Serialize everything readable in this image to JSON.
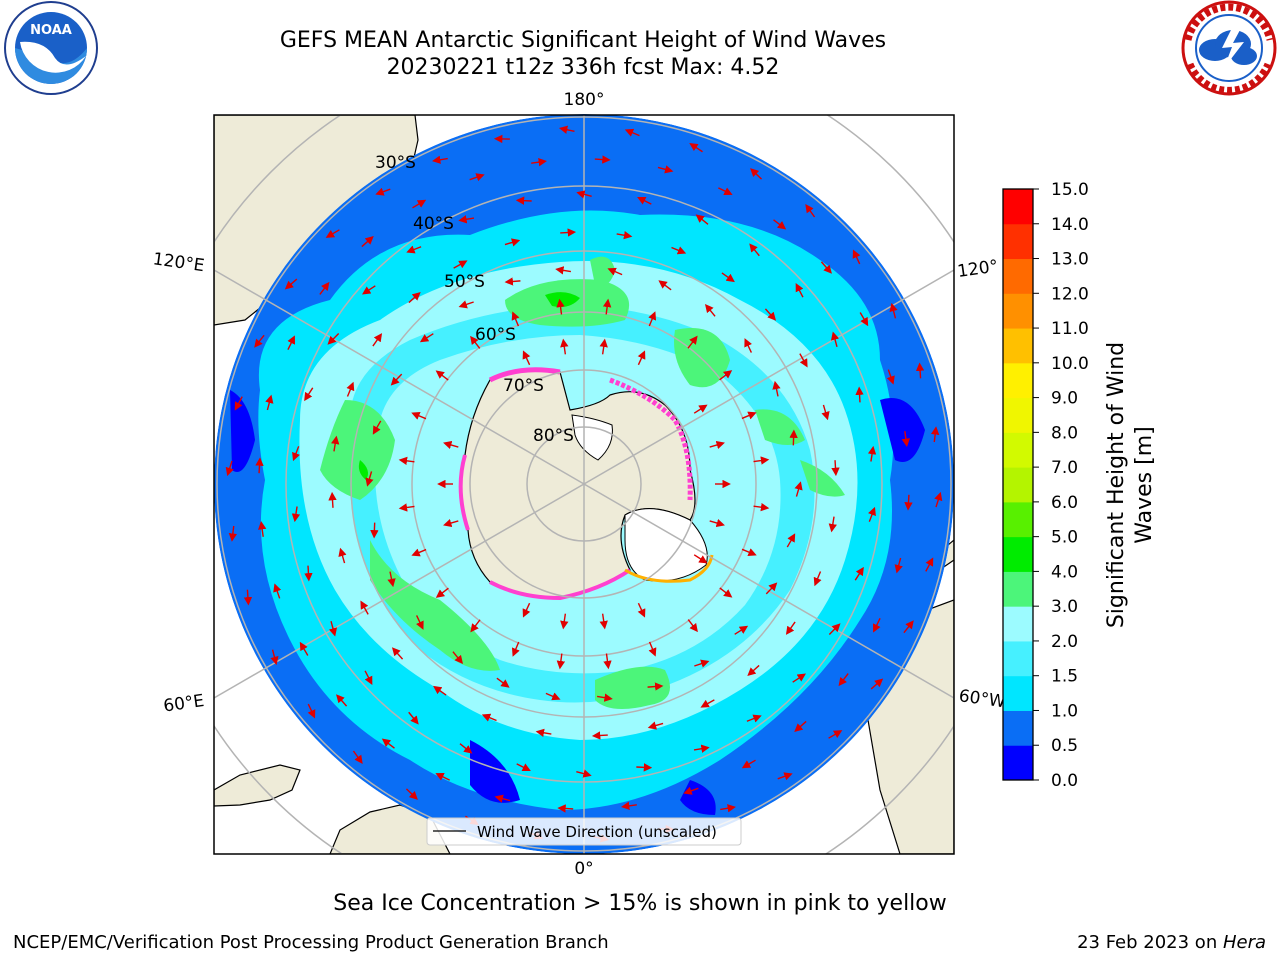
{
  "header": {
    "title_line1": "GEFS MEAN Antarctic Significant Height of Wind Waves",
    "title_line2": "20230221 t12z 336h fcst   Max: 4.52"
  },
  "logos": {
    "noaa": {
      "text": "NOAA",
      "ring_text": "NATIONAL OCEANIC AND ATMOSPHERIC ADMINISTRATION",
      "bottom_text": "U.S. DEPARTMENT OF COMMERCE"
    },
    "nws": {
      "ring_text": "NATIONAL WEATHER SERVICE"
    }
  },
  "map": {
    "projection": "south-polar-stereographic",
    "longitude_labels": {
      "top": "180°",
      "bottom": "0°",
      "upper_left": "120°E",
      "lower_left": "60°E",
      "upper_right": "120°",
      "lower_right": "60°W"
    },
    "latitude_labels": [
      "30°S",
      "40°S",
      "50°S",
      "60°S",
      "70°S",
      "80°S"
    ],
    "legend_label": "Wind Wave Direction (unscaled)"
  },
  "colorbar": {
    "label": "Significant Height of Wind Waves [m]",
    "label_line1": "Significant Height of Wind",
    "label_line2": "Waves [m]",
    "ticks": [
      "0.0",
      "0.5",
      "1.0",
      "1.5",
      "2.0",
      "3.0",
      "4.0",
      "5.0",
      "6.0",
      "7.0",
      "8.0",
      "9.0",
      "10.0",
      "11.0",
      "12.0",
      "13.0",
      "14.0",
      "15.0"
    ],
    "colors": [
      "#0000ff",
      "#0a6ef5",
      "#00e6ff",
      "#46f0ff",
      "#9cfbff",
      "#4cf57a",
      "#00ec00",
      "#58f000",
      "#b4f400",
      "#d2fa00",
      "#f0f600",
      "#fff000",
      "#ffc000",
      "#ff9000",
      "#ff6a00",
      "#ff3000",
      "#ff0000"
    ]
  },
  "caption": "Sea Ice Concentration > 15% is shown in pink to yellow",
  "footer": {
    "left": "NCEP/EMC/Verification Post Processing Product Generation Branch",
    "right_prefix": "23 Feb 2023 on ",
    "right_host": "Hera"
  }
}
